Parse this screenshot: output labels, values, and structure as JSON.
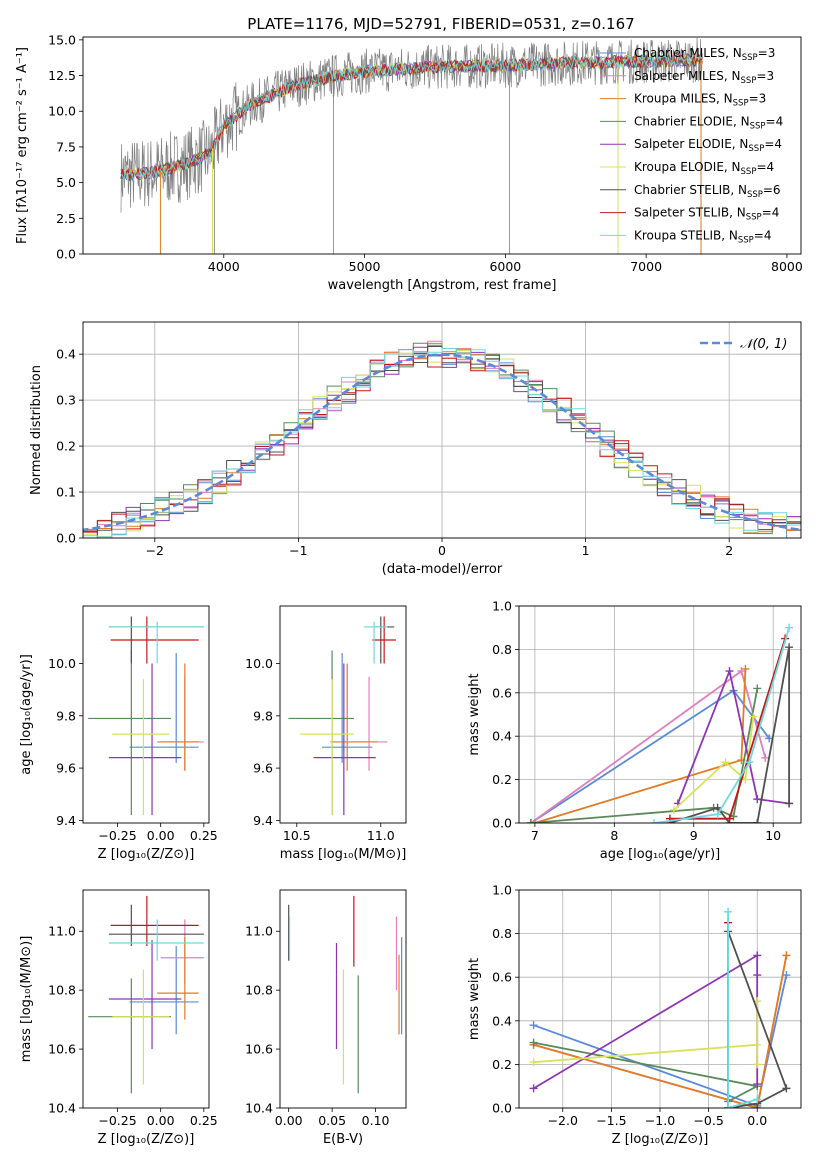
{
  "figure_title": "PLATE=1176, MJD=52791, FIBERID=0531, z=0.167",
  "legend_spectrum": [
    {
      "name": "Chabrier MILES",
      "nssp": "3",
      "color": "#5b8ad9"
    },
    {
      "name": "Salpeter MILES",
      "nssp": "3",
      "color": "#e07fc0"
    },
    {
      "name": "Kroupa MILES",
      "nssp": "3",
      "color": "#e07b26"
    },
    {
      "name": "Chabrier ELODIE",
      "nssp": "4",
      "color": "#5a8a5a"
    },
    {
      "name": "Salpeter ELODIE",
      "nssp": "4",
      "color": "#8e35b5"
    },
    {
      "name": "Kroupa ELODIE",
      "nssp": "4",
      "color": "#d7e25a"
    },
    {
      "name": "Chabrier STELIB",
      "nssp": "6",
      "color": "#505050"
    },
    {
      "name": "Salpeter STELIB",
      "nssp": "4",
      "color": "#c31818"
    },
    {
      "name": "Kroupa STELIB",
      "nssp": "4",
      "color": "#6fd9de"
    }
  ],
  "legend_nssp_label": "N",
  "legend_nssp_sub": "SSP",
  "chart_data": [
    {
      "id": "spectrum",
      "type": "line",
      "xlabel": "wavelength [Angstrom, rest frame]",
      "ylabel": "Flux [fλ10⁻¹⁷ erg cm⁻² s⁻¹ A⁻¹]",
      "xlim": [
        3000,
        8100
      ],
      "ylim": [
        0,
        15.2
      ],
      "xticks": [
        4000,
        5000,
        6000,
        7000,
        8000
      ],
      "yticks": [
        0.0,
        2.5,
        5.0,
        7.5,
        10.0,
        12.5,
        15.0
      ],
      "data_range": [
        3270,
        7400
      ],
      "continuum": {
        "x": [
          3270,
          3500,
          3700,
          3900,
          4000,
          4200,
          4500,
          4800,
          5000,
          5500,
          6000,
          6500,
          7000,
          7400
        ],
        "y": [
          5.5,
          5.7,
          6.2,
          7.0,
          9.0,
          10.5,
          11.8,
          12.5,
          12.8,
          13.1,
          13.2,
          13.4,
          13.5,
          13.6
        ]
      },
      "absorption_lines": [
        {
          "x": 3934,
          "y": 0.0
        },
        {
          "x": 4780,
          "y": 0.0
        },
        {
          "x": 6030,
          "y": 0.0
        },
        {
          "x": 6800,
          "y": 0.0
        },
        {
          "x": 7390,
          "y": 0.0
        }
      ],
      "model_series": [
        "Chabrier MILES",
        "Salpeter MILES",
        "Kroupa MILES",
        "Chabrier ELODIE",
        "Salpeter ELODIE",
        "Kroupa ELODIE",
        "Chabrier STELIB",
        "Salpeter STELIB",
        "Kroupa STELIB"
      ]
    },
    {
      "id": "residuals",
      "type": "histogram",
      "xlabel": "(data-model)/error",
      "ylabel": "Normed distribution",
      "xlim": [
        -2.5,
        2.5
      ],
      "ylim": [
        0,
        0.47
      ],
      "xticks": [
        -2,
        -1,
        0,
        1,
        2
      ],
      "yticks": [
        0.0,
        0.1,
        0.2,
        0.3,
        0.4
      ],
      "grid": true,
      "legend_label": "𝒩(0, 1)",
      "legend_position": "top-right",
      "reference_curve": "normal(0,1)"
    },
    {
      "id": "age_vs_Z",
      "type": "scatter",
      "xlabel": "Z [log₁₀(Z/Z⊙)]",
      "ylabel": "age  [log₁₀(age/yr)]",
      "xlim": [
        -0.45,
        0.28
      ],
      "ylim": [
        9.39,
        10.22
      ],
      "xticks": [
        -0.25,
        0.0,
        0.25
      ],
      "yticks": [
        9.4,
        9.6,
        9.8,
        10.0
      ],
      "points": [
        {
          "s": 0,
          "x": 0.09,
          "y": 9.68,
          "xe": [
            -0.18,
            0.22
          ],
          "ye": [
            9.62,
            10.04
          ]
        },
        {
          "s": 1,
          "x": 0.14,
          "y": 9.7,
          "xe": [
            0.0,
            0.25
          ],
          "ye": [
            9.59,
            9.95
          ]
        },
        {
          "s": 2,
          "x": 0.14,
          "y": 9.7,
          "xe": [
            -0.02,
            0.22
          ],
          "ye": [
            9.59,
            10.0
          ]
        },
        {
          "s": 3,
          "x": -0.17,
          "y": 9.79,
          "xe": [
            -0.42,
            0.06
          ],
          "ye": [
            9.42,
            10.05
          ]
        },
        {
          "s": 4,
          "x": -0.05,
          "y": 9.64,
          "xe": [
            -0.3,
            0.12
          ],
          "ye": [
            9.42,
            10.0
          ]
        },
        {
          "s": 5,
          "x": -0.1,
          "y": 9.73,
          "xe": [
            -0.28,
            0.05
          ],
          "ye": [
            9.42,
            9.94
          ]
        },
        {
          "s": 6,
          "x": -0.17,
          "y": 10.14,
          "xe": [
            -0.3,
            0.25
          ],
          "ye": [
            10.0,
            10.18
          ]
        },
        {
          "s": 7,
          "x": -0.08,
          "y": 10.09,
          "xe": [
            -0.29,
            0.22
          ],
          "ye": [
            10.0,
            10.18
          ]
        },
        {
          "s": 8,
          "x": -0.02,
          "y": 10.14,
          "xe": [
            -0.3,
            0.25
          ],
          "ye": [
            10.0,
            10.16
          ]
        }
      ]
    },
    {
      "id": "age_vs_mass",
      "type": "scatter",
      "xlabel": "mass [log₁₀(M/M⊙)]",
      "ylabel": "",
      "xlim": [
        10.4,
        11.15
      ],
      "ylim": [
        9.39,
        10.22
      ],
      "xticks": [
        10.5,
        11.0
      ],
      "yticks": [
        9.4,
        9.6,
        9.8,
        10.0
      ],
      "points": [
        {
          "s": 0,
          "x": 10.77,
          "y": 9.68,
          "xe": [
            10.65,
            10.95
          ],
          "ye": [
            9.62,
            10.04
          ]
        },
        {
          "s": 1,
          "x": 10.93,
          "y": 9.7,
          "xe": [
            10.82,
            11.04
          ],
          "ye": [
            9.59,
            9.95
          ]
        },
        {
          "s": 2,
          "x": 10.8,
          "y": 9.7,
          "xe": [
            10.7,
            10.98
          ],
          "ye": [
            9.59,
            10.0
          ]
        },
        {
          "s": 3,
          "x": 10.71,
          "y": 9.79,
          "xe": [
            10.45,
            10.84
          ],
          "ye": [
            9.42,
            10.05
          ]
        },
        {
          "s": 4,
          "x": 10.78,
          "y": 9.64,
          "xe": [
            10.6,
            10.97
          ],
          "ye": [
            9.42,
            10.0
          ]
        },
        {
          "s": 5,
          "x": 10.71,
          "y": 9.73,
          "xe": [
            10.52,
            10.84
          ],
          "ye": [
            9.42,
            9.94
          ]
        },
        {
          "s": 6,
          "x": 11.0,
          "y": 10.14,
          "xe": [
            10.95,
            11.08
          ],
          "ye": [
            10.0,
            10.18
          ]
        },
        {
          "s": 7,
          "x": 11.02,
          "y": 10.09,
          "xe": [
            10.95,
            11.09
          ],
          "ye": [
            10.0,
            10.18
          ]
        },
        {
          "s": 8,
          "x": 10.96,
          "y": 10.14,
          "xe": [
            10.9,
            11.04
          ],
          "ye": [
            10.0,
            10.16
          ]
        }
      ]
    },
    {
      "id": "weight_vs_age",
      "type": "line",
      "xlabel": "age  [log₁₀(age/yr)]",
      "ylabel": "mass weight",
      "xlim": [
        6.8,
        10.35
      ],
      "ylim": [
        0,
        1.0
      ],
      "xticks": [
        7,
        8,
        9,
        10
      ],
      "yticks": [
        0.0,
        0.2,
        0.4,
        0.6,
        0.8,
        1.0
      ],
      "grid": true,
      "series": [
        {
          "s": 0,
          "x": [
            6.95,
            9.5,
            9.95
          ],
          "y": [
            0.0,
            0.61,
            0.39
          ]
        },
        {
          "s": 1,
          "x": 6.95,
          "x2": 9.6,
          "pts": [
            [
              6.95,
              0.0
            ],
            [
              9.6,
              0.7
            ],
            [
              9.9,
              0.3
            ]
          ]
        },
        {
          "s": 2,
          "pts": [
            [
              7.0,
              0.0
            ],
            [
              9.6,
              0.29
            ],
            [
              9.65,
              0.71
            ]
          ]
        },
        {
          "s": 3,
          "pts": [
            [
              6.95,
              0.0
            ],
            [
              9.25,
              0.07
            ],
            [
              9.5,
              0.03
            ],
            [
              9.8,
              0.62
            ]
          ]
        },
        {
          "s": 4,
          "pts": [
            [
              8.8,
              0.09
            ],
            [
              9.45,
              0.7
            ],
            [
              9.8,
              0.11
            ],
            [
              10.2,
              0.09
            ]
          ]
        },
        {
          "s": 5,
          "pts": [
            [
              8.75,
              0.06
            ],
            [
              9.4,
              0.28
            ],
            [
              9.65,
              0.2
            ],
            [
              9.75,
              0.49
            ]
          ]
        },
        {
          "s": 6,
          "pts": [
            [
              8.7,
              0.0
            ],
            [
              9.3,
              0.07
            ],
            [
              9.45,
              0.0
            ],
            [
              9.8,
              0.0
            ],
            [
              10.2,
              0.81
            ],
            [
              10.2,
              0.09
            ]
          ]
        },
        {
          "s": 7,
          "pts": [
            [
              8.7,
              0.02
            ],
            [
              9.45,
              0.02
            ],
            [
              10.15,
              0.85
            ]
          ]
        },
        {
          "s": 8,
          "pts": [
            [
              8.5,
              0.0
            ],
            [
              9.3,
              0.04
            ],
            [
              9.7,
              0.28
            ],
            [
              10.2,
              0.9
            ]
          ]
        }
      ]
    },
    {
      "id": "mass_vs_Z",
      "type": "scatter",
      "xlabel": "Z [log₁₀(Z/Z⊙)]",
      "ylabel": "mass [log₁₀(M/M⊙)]",
      "xlim": [
        -0.45,
        0.28
      ],
      "ylim": [
        10.4,
        11.14
      ],
      "xticks": [
        -0.25,
        0.0,
        0.25
      ],
      "yticks": [
        10.4,
        10.6,
        10.8,
        11.0
      ],
      "points": [
        {
          "s": 0,
          "x": 0.09,
          "y": 10.76,
          "xe": [
            -0.18,
            0.22
          ],
          "ye": [
            10.65,
            10.95
          ]
        },
        {
          "s": 1,
          "x": 0.14,
          "y": 10.91,
          "xe": [
            0.0,
            0.25
          ],
          "ye": [
            10.82,
            11.04
          ]
        },
        {
          "s": 2,
          "x": 0.14,
          "y": 10.79,
          "xe": [
            -0.02,
            0.22
          ],
          "ye": [
            10.7,
            10.98
          ]
        },
        {
          "s": 3,
          "x": -0.17,
          "y": 10.71,
          "xe": [
            -0.42,
            0.06
          ],
          "ye": [
            10.45,
            10.84
          ]
        },
        {
          "s": 4,
          "x": -0.05,
          "y": 10.77,
          "xe": [
            -0.3,
            0.12
          ],
          "ye": [
            10.6,
            10.97
          ]
        },
        {
          "s": 5,
          "x": -0.1,
          "y": 10.71,
          "xe": [
            -0.28,
            0.05
          ],
          "ye": [
            10.48,
            10.87
          ]
        },
        {
          "s": 6,
          "x": -0.17,
          "y": 10.99,
          "xe": [
            -0.3,
            0.25
          ],
          "ye": [
            10.95,
            11.09
          ]
        },
        {
          "s": 7,
          "x": -0.08,
          "y": 11.02,
          "xe": [
            -0.29,
            0.22
          ],
          "ye": [
            10.95,
            11.12
          ]
        },
        {
          "s": 8,
          "x": -0.02,
          "y": 10.96,
          "xe": [
            -0.3,
            0.25
          ],
          "ye": [
            10.9,
            11.04
          ]
        }
      ]
    },
    {
      "id": "mass_vs_ebv",
      "type": "scatter",
      "xlabel": "E(B-V)",
      "ylabel": "",
      "xlim": [
        -0.01,
        0.135
      ],
      "ylim": [
        10.4,
        11.14
      ],
      "xticks": [
        0.0,
        0.05,
        0.1
      ],
      "yticks": [
        10.4,
        10.6,
        10.8,
        11.0
      ],
      "points": [
        {
          "s": 0,
          "x": 0.13,
          "y": 10.79,
          "ye": [
            10.65,
            10.98
          ]
        },
        {
          "s": 1,
          "x": 0.124,
          "y": 10.91,
          "ye": [
            10.8,
            11.05
          ]
        },
        {
          "s": 2,
          "x": 0.127,
          "y": 10.78,
          "ye": [
            10.65,
            10.92
          ]
        },
        {
          "s": 3,
          "x": 0.08,
          "y": 10.71,
          "ye": [
            10.45,
            10.85
          ]
        },
        {
          "s": 4,
          "x": 0.055,
          "y": 10.78,
          "ye": [
            10.6,
            10.96
          ]
        },
        {
          "s": 5,
          "x": 0.063,
          "y": 10.71,
          "ye": [
            10.48,
            10.87
          ]
        },
        {
          "s": 6,
          "x": 0.0,
          "y": 10.99,
          "ye": [
            10.9,
            11.09
          ]
        },
        {
          "s": 7,
          "x": 0.075,
          "y": 11.01,
          "ye": [
            10.88,
            11.12
          ]
        },
        {
          "s": 8,
          "x": 0.001,
          "y": 10.96,
          "ye": [
            10.9,
            11.05
          ]
        }
      ]
    },
    {
      "id": "weight_vs_Z",
      "type": "line",
      "xlabel": "Z [log₁₀(Z/Z⊙)]",
      "ylabel": "mass weight",
      "xlim": [
        -2.45,
        0.45
      ],
      "ylim": [
        0,
        1.0
      ],
      "xticks": [
        -2.0,
        -1.5,
        -1.0,
        -0.5,
        0.0
      ],
      "yticks": [
        0.0,
        0.2,
        0.4,
        0.6,
        0.8,
        1.0
      ],
      "grid": true,
      "series": [
        {
          "s": 0,
          "pts": [
            [
              -2.3,
              0.38
            ],
            [
              0.0,
              0.01
            ],
            [
              0.3,
              0.61
            ]
          ]
        },
        {
          "s": 1,
          "pts": [
            [
              -2.3,
              0.29
            ],
            [
              0.0,
              0.0
            ],
            [
              0.3,
              0.7
            ]
          ]
        },
        {
          "s": 2,
          "pts": [
            [
              -2.3,
              0.29
            ],
            [
              0.0,
              0.0
            ],
            [
              0.3,
              0.7
            ]
          ]
        },
        {
          "s": 3,
          "pts": [
            [
              -2.3,
              0.3
            ],
            [
              0.0,
              0.1
            ],
            [
              -0.3,
              0.03
            ]
          ]
        },
        {
          "s": 4,
          "pts": [
            [
              -2.3,
              0.09
            ],
            [
              0.0,
              0.7
            ],
            [
              0.0,
              0.11
            ],
            [
              0.0,
              0.61
            ]
          ]
        },
        {
          "s": 5,
          "pts": [
            [
              -2.3,
              0.21
            ],
            [
              0.0,
              0.29
            ],
            [
              0.0,
              0.49
            ],
            [
              0.0,
              0.2
            ]
          ]
        },
        {
          "s": 6,
          "pts": [
            [
              -0.3,
              0.0
            ],
            [
              0.0,
              0.02
            ],
            [
              0.3,
              0.09
            ],
            [
              -0.3,
              0.81
            ]
          ]
        },
        {
          "s": 7,
          "pts": [
            [
              -0.3,
              0.0
            ],
            [
              -0.3,
              0.85
            ]
          ]
        },
        {
          "s": 8,
          "pts": [
            [
              -0.3,
              0.9
            ],
            [
              -0.3,
              0.0
            ],
            [
              0.0,
              0.04
            ]
          ]
        }
      ]
    }
  ]
}
